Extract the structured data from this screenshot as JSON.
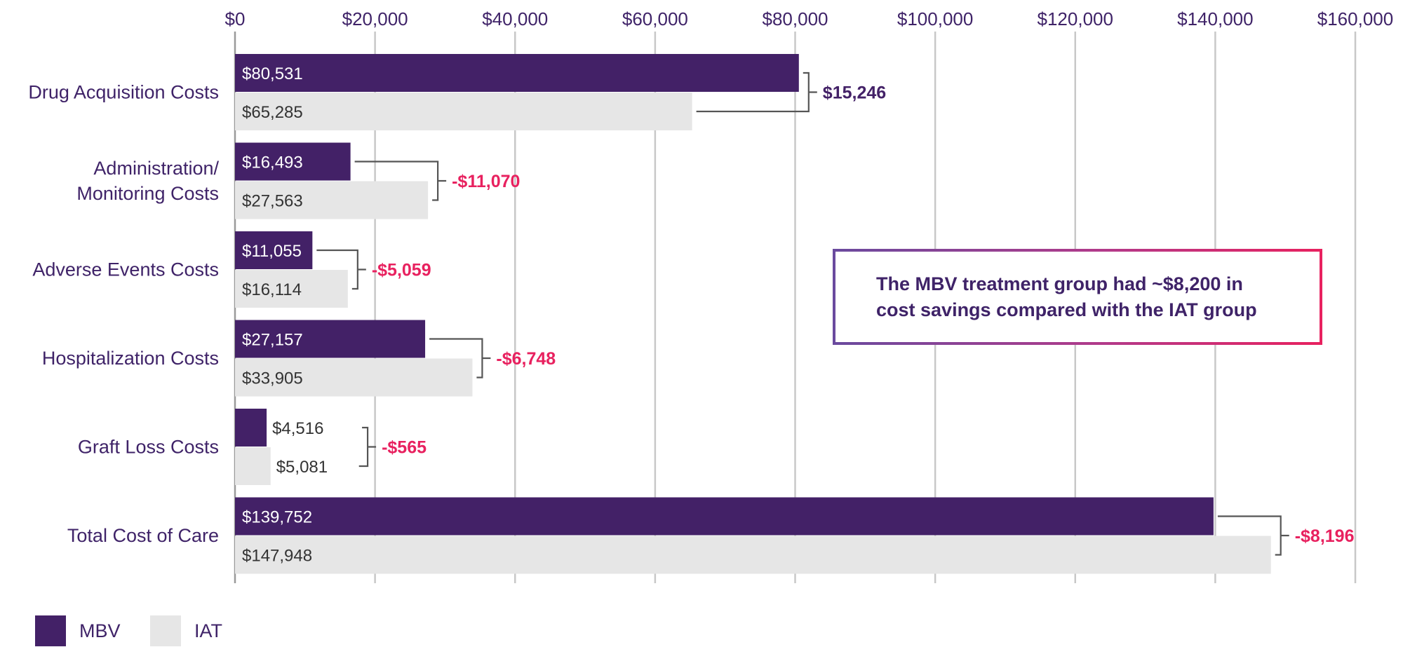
{
  "colors": {
    "mbv": "#432167",
    "iat": "#e6e6e6",
    "positive": "#432167",
    "negative": "#e8215f",
    "axis_text": "#3f2368",
    "grid": "#c8c8c8"
  },
  "legend": [
    {
      "key": "mbv",
      "label": "MBV"
    },
    {
      "key": "iat",
      "label": "IAT"
    }
  ],
  "callout": {
    "text": "The MBV treatment group had ~$8,200 in\ncost savings compared with the IAT group"
  },
  "chart_data": {
    "type": "bar",
    "orientation": "horizontal",
    "title": "",
    "xlabel": "",
    "ylabel": "",
    "xlim": [
      0,
      160000
    ],
    "x_ticks": [
      "$0",
      "$20,000",
      "$40,000",
      "$60,000",
      "$80,000",
      "$100,000",
      "$120,000",
      "$140,000",
      "$160,000"
    ],
    "x_tick_values": [
      0,
      20000,
      40000,
      60000,
      80000,
      100000,
      120000,
      140000,
      160000
    ],
    "grid": true,
    "legend_position": "bottom-left",
    "categories": [
      [
        "Drug Acquisition Costs"
      ],
      [
        "Administration/",
        "Monitoring Costs"
      ],
      [
        "Adverse Events Costs"
      ],
      [
        "Hospitalization Costs"
      ],
      [
        "Graft Loss Costs"
      ],
      [
        "Total Cost of Care"
      ]
    ],
    "series": [
      {
        "name": "MBV",
        "values": [
          80531,
          16493,
          11055,
          27157,
          4516,
          139752
        ],
        "labels": [
          "$80,531",
          "$16,493",
          "$11,055",
          "$27,157",
          "$4,516",
          "$139,752"
        ]
      },
      {
        "name": "IAT",
        "values": [
          65285,
          27563,
          16114,
          33905,
          5081,
          147948
        ],
        "labels": [
          "$65,285",
          "$27,563",
          "$16,114",
          "$33,905",
          "$5,081",
          "$147,948"
        ]
      }
    ],
    "differences": [
      {
        "value": 15246,
        "label": "$15,246"
      },
      {
        "value": -11070,
        "label": "-$11,070"
      },
      {
        "value": -5059,
        "label": "-$5,059"
      },
      {
        "value": -6748,
        "label": "-$6,748"
      },
      {
        "value": -565,
        "label": "-$565"
      },
      {
        "value": -8196,
        "label": "-$8,196"
      }
    ]
  }
}
